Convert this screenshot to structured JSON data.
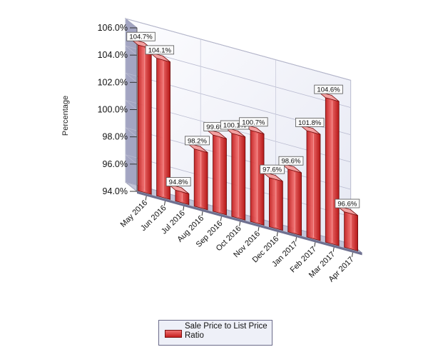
{
  "chart_data": {
    "type": "bar",
    "title": "",
    "xlabel": "",
    "ylabel": "Percentage",
    "ylim": [
      94.0,
      106.0
    ],
    "y_ticks": [
      "94.0%",
      "96.0%",
      "98.0%",
      "100.0%",
      "102.0%",
      "104.0%",
      "106.0%"
    ],
    "categories": [
      "May 2016",
      "Jun 2016",
      "Jul 2016",
      "Aug 2016",
      "Sep 2016",
      "Oct 2016",
      "Nov 2016",
      "Dec 2016",
      "Jan 2017",
      "Feb 2017",
      "Mar 2017",
      "Apr 2017"
    ],
    "series": [
      {
        "name": "Sale Price to List Price Ratio",
        "values": [
          104.7,
          104.1,
          94.8,
          98.2,
          99.6,
          100.1,
          100.7,
          97.6,
          98.6,
          101.8,
          104.6,
          96.6
        ],
        "labels": [
          "104.7%",
          "104.1%",
          "94.8%",
          "98.2%",
          "99.6%",
          "100.1%",
          "100.7%",
          "97.6%",
          "98.6%",
          "101.8%",
          "104.6%",
          "96.6%"
        ],
        "color": "#d42a2a"
      }
    ],
    "grid": true,
    "legend_position": "bottom-center",
    "style": "3d"
  }
}
